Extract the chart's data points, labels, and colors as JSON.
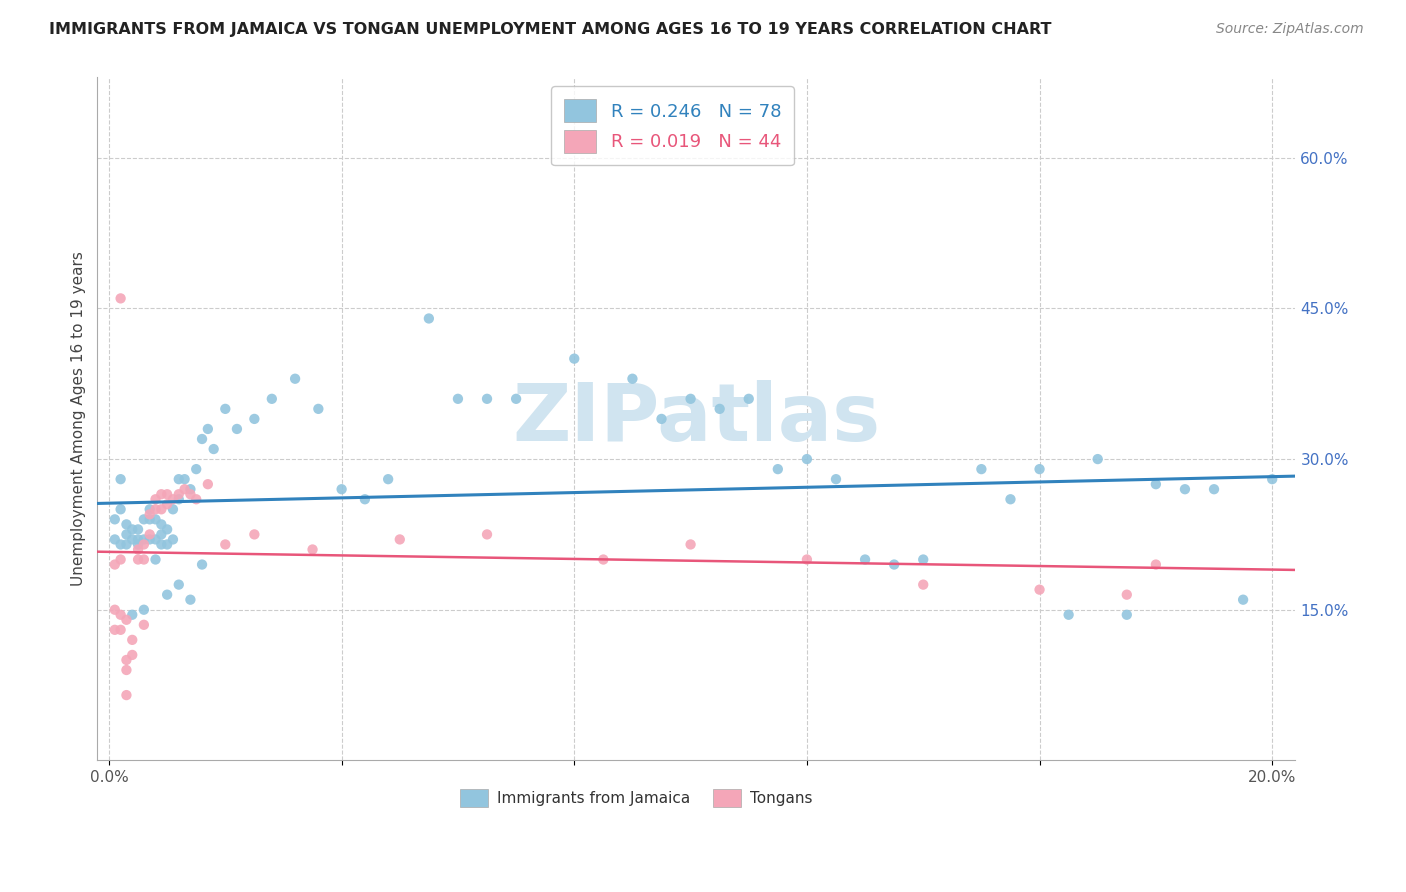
{
  "title": "IMMIGRANTS FROM JAMAICA VS TONGAN UNEMPLOYMENT AMONG AGES 16 TO 19 YEARS CORRELATION CHART",
  "source": "Source: ZipAtlas.com",
  "ylabel": "Unemployment Among Ages 16 to 19 years",
  "legend_label_blue": "Immigrants from Jamaica",
  "legend_label_pink": "Tongans",
  "blue_R": "0.246",
  "blue_N": "78",
  "pink_R": "0.019",
  "pink_N": "44",
  "y_ticks_right": [
    0.15,
    0.3,
    0.45,
    0.6
  ],
  "y_tick_labels_right": [
    "15.0%",
    "30.0%",
    "45.0%",
    "60.0%"
  ],
  "xlim": [
    -0.002,
    0.204
  ],
  "ylim": [
    0.0,
    0.68
  ],
  "blue_color": "#92c5de",
  "pink_color": "#f4a6b8",
  "blue_line_color": "#3182bd",
  "pink_line_color": "#e8567a",
  "watermark": "ZIPatlas",
  "watermark_color": "#d0e4f0",
  "blue_scatter_x": [
    0.001,
    0.001,
    0.002,
    0.002,
    0.003,
    0.003,
    0.003,
    0.004,
    0.004,
    0.005,
    0.005,
    0.005,
    0.006,
    0.006,
    0.007,
    0.007,
    0.007,
    0.008,
    0.008,
    0.009,
    0.009,
    0.009,
    0.01,
    0.01,
    0.011,
    0.011,
    0.012,
    0.012,
    0.013,
    0.014,
    0.015,
    0.016,
    0.017,
    0.018,
    0.02,
    0.022,
    0.025,
    0.028,
    0.032,
    0.036,
    0.04,
    0.044,
    0.048,
    0.055,
    0.06,
    0.065,
    0.07,
    0.08,
    0.09,
    0.095,
    0.1,
    0.105,
    0.11,
    0.115,
    0.12,
    0.125,
    0.13,
    0.135,
    0.14,
    0.15,
    0.155,
    0.16,
    0.165,
    0.17,
    0.175,
    0.18,
    0.185,
    0.19,
    0.195,
    0.2,
    0.002,
    0.004,
    0.006,
    0.008,
    0.01,
    0.012,
    0.014,
    0.016
  ],
  "blue_scatter_y": [
    0.22,
    0.24,
    0.215,
    0.25,
    0.215,
    0.225,
    0.235,
    0.22,
    0.23,
    0.215,
    0.22,
    0.23,
    0.22,
    0.24,
    0.22,
    0.24,
    0.25,
    0.22,
    0.24,
    0.215,
    0.225,
    0.235,
    0.215,
    0.23,
    0.22,
    0.25,
    0.26,
    0.28,
    0.28,
    0.27,
    0.29,
    0.32,
    0.33,
    0.31,
    0.35,
    0.33,
    0.34,
    0.36,
    0.38,
    0.35,
    0.27,
    0.26,
    0.28,
    0.44,
    0.36,
    0.36,
    0.36,
    0.4,
    0.38,
    0.34,
    0.36,
    0.35,
    0.36,
    0.29,
    0.3,
    0.28,
    0.2,
    0.195,
    0.2,
    0.29,
    0.26,
    0.29,
    0.145,
    0.3,
    0.145,
    0.275,
    0.27,
    0.27,
    0.16,
    0.28,
    0.28,
    0.145,
    0.15,
    0.2,
    0.165,
    0.175,
    0.16,
    0.195
  ],
  "pink_scatter_x": [
    0.001,
    0.001,
    0.001,
    0.002,
    0.002,
    0.002,
    0.003,
    0.003,
    0.003,
    0.004,
    0.004,
    0.005,
    0.005,
    0.006,
    0.006,
    0.006,
    0.007,
    0.007,
    0.008,
    0.008,
    0.009,
    0.009,
    0.01,
    0.01,
    0.011,
    0.012,
    0.013,
    0.014,
    0.015,
    0.017,
    0.02,
    0.025,
    0.035,
    0.05,
    0.065,
    0.085,
    0.1,
    0.12,
    0.14,
    0.16,
    0.175,
    0.18,
    0.002,
    0.003
  ],
  "pink_scatter_y": [
    0.13,
    0.15,
    0.195,
    0.13,
    0.145,
    0.2,
    0.1,
    0.09,
    0.14,
    0.105,
    0.12,
    0.2,
    0.21,
    0.135,
    0.2,
    0.215,
    0.225,
    0.245,
    0.25,
    0.26,
    0.25,
    0.265,
    0.255,
    0.265,
    0.26,
    0.265,
    0.27,
    0.265,
    0.26,
    0.275,
    0.215,
    0.225,
    0.21,
    0.22,
    0.225,
    0.2,
    0.215,
    0.2,
    0.175,
    0.17,
    0.165,
    0.195,
    0.46,
    0.065
  ]
}
